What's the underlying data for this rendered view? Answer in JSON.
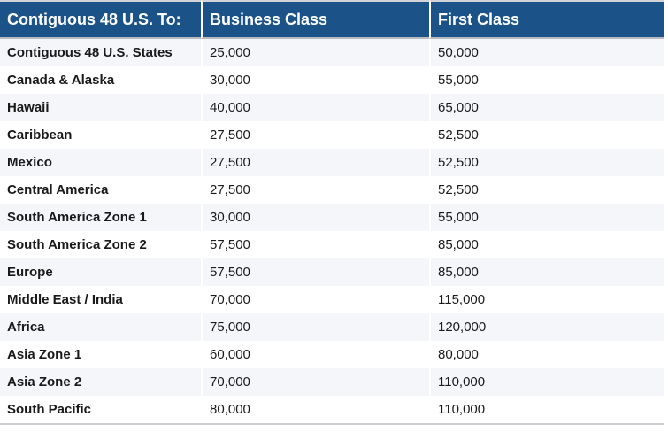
{
  "chart_data": {
    "type": "table",
    "title": "Contiguous 48 U.S. To:",
    "columns": [
      "Contiguous 48 U.S. To:",
      "Business Class",
      "First Class"
    ],
    "rows": [
      {
        "destination": "Contiguous 48 U.S. States",
        "business_class": 25000,
        "first_class": 50000
      },
      {
        "destination": "Canada & Alaska",
        "business_class": 30000,
        "first_class": 55000
      },
      {
        "destination": "Hawaii",
        "business_class": 40000,
        "first_class": 65000
      },
      {
        "destination": "Caribbean",
        "business_class": 27500,
        "first_class": 52500
      },
      {
        "destination": "Mexico",
        "business_class": 27500,
        "first_class": 52500
      },
      {
        "destination": "Central America",
        "business_class": 27500,
        "first_class": 52500
      },
      {
        "destination": "South America Zone 1",
        "business_class": 30000,
        "first_class": 55000
      },
      {
        "destination": "South America Zone 2",
        "business_class": 57500,
        "first_class": 85000
      },
      {
        "destination": "Europe",
        "business_class": 57500,
        "first_class": 85000
      },
      {
        "destination": "Middle East / India",
        "business_class": 70000,
        "first_class": 115000
      },
      {
        "destination": "Africa",
        "business_class": 75000,
        "first_class": 120000
      },
      {
        "destination": "Asia Zone 1",
        "business_class": 60000,
        "first_class": 80000
      },
      {
        "destination": "Asia Zone 2",
        "business_class": 70000,
        "first_class": 110000
      },
      {
        "destination": "South Pacific",
        "business_class": 80000,
        "first_class": 110000
      }
    ],
    "layout": {
      "striped": true,
      "stripe_rows": "odd",
      "legend_position": "none",
      "grid": false
    }
  },
  "table": {
    "headers": [
      "Contiguous 48 U.S. To:",
      "Business Class",
      "First Class"
    ],
    "rows": [
      {
        "destination": "Contiguous 48 U.S. States",
        "business_class": "25,000",
        "first_class": "50,000"
      },
      {
        "destination": "Canada & Alaska",
        "business_class": "30,000",
        "first_class": "55,000"
      },
      {
        "destination": "Hawaii",
        "business_class": "40,000",
        "first_class": "65,000"
      },
      {
        "destination": "Caribbean",
        "business_class": "27,500",
        "first_class": "52,500"
      },
      {
        "destination": "Mexico",
        "business_class": "27,500",
        "first_class": "52,500"
      },
      {
        "destination": "Central America",
        "business_class": "27,500",
        "first_class": "52,500"
      },
      {
        "destination": "South America Zone 1",
        "business_class": "30,000",
        "first_class": "55,000"
      },
      {
        "destination": "South America Zone 2",
        "business_class": "57,500",
        "first_class": "85,000"
      },
      {
        "destination": "Europe",
        "business_class": "57,500",
        "first_class": "85,000"
      },
      {
        "destination": "Middle East / India",
        "business_class": "70,000",
        "first_class": "115,000"
      },
      {
        "destination": "Africa",
        "business_class": "75,000",
        "first_class": "120,000"
      },
      {
        "destination": "Asia Zone 1",
        "business_class": "60,000",
        "first_class": "80,000"
      },
      {
        "destination": "Asia Zone 2",
        "business_class": "70,000",
        "first_class": "110,000"
      },
      {
        "destination": "South Pacific",
        "business_class": "80,000",
        "first_class": "110,000"
      }
    ]
  },
  "colors": {
    "header_bg": "#1b5288",
    "header_text": "#ffffff",
    "stripe_bg": "#f5f6fa",
    "row_bg": "#ffffff",
    "body_text": "#1a1a1a",
    "separator": "#ffffff",
    "top_rule": "#d2d3d6",
    "header_bottom_rule": "#b7bac1",
    "table_bottom_rule": "#caccd1"
  }
}
